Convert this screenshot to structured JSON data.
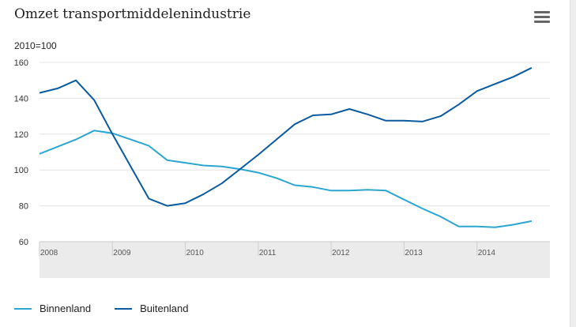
{
  "title": "Omzet transportmiddelenindustrie",
  "menu_icon": "hamburger-menu-icon",
  "chart_data": {
    "type": "line",
    "ylabel": "2010=100",
    "ylim": [
      60,
      160
    ],
    "yticks": [
      60,
      80,
      100,
      120,
      140,
      160
    ],
    "x_tick_labels": [
      "2008",
      "2009",
      "2010",
      "2011",
      "2012",
      "2013",
      "2014"
    ],
    "grid": true,
    "legend_position": "bottom-left",
    "colors": {
      "Binnenland": "#2aa6d0",
      "Buitenland": "#0a5aa0"
    },
    "series": [
      {
        "name": "Binnenland",
        "values": [
          {
            "x": 2008.0,
            "y": 109
          },
          {
            "x": 2008.25,
            "y": 113
          },
          {
            "x": 2008.5,
            "y": 117
          },
          {
            "x": 2008.75,
            "y": 122
          },
          {
            "x": 2009.0,
            "y": 120.5
          },
          {
            "x": 2009.25,
            "y": 117
          },
          {
            "x": 2009.5,
            "y": 113.5
          },
          {
            "x": 2009.75,
            "y": 105.5
          },
          {
            "x": 2010.0,
            "y": 104
          },
          {
            "x": 2010.25,
            "y": 102.5
          },
          {
            "x": 2010.5,
            "y": 102
          },
          {
            "x": 2010.75,
            "y": 100.5
          },
          {
            "x": 2011.0,
            "y": 98.5
          },
          {
            "x": 2011.25,
            "y": 95.5
          },
          {
            "x": 2011.5,
            "y": 91.5
          },
          {
            "x": 2011.75,
            "y": 90.5
          },
          {
            "x": 2012.0,
            "y": 88.5
          },
          {
            "x": 2012.25,
            "y": 88.5
          },
          {
            "x": 2012.5,
            "y": 89
          },
          {
            "x": 2012.75,
            "y": 88.5
          },
          {
            "x": 2013.0,
            "y": 83.5
          },
          {
            "x": 2013.25,
            "y": 78.5
          },
          {
            "x": 2013.5,
            "y": 74
          },
          {
            "x": 2013.75,
            "y": 68.5
          },
          {
            "x": 2014.0,
            "y": 68.5
          },
          {
            "x": 2014.25,
            "y": 68
          },
          {
            "x": 2014.5,
            "y": 69.5
          },
          {
            "x": 2014.75,
            "y": 71.5
          }
        ]
      },
      {
        "name": "Buitenland",
        "values": [
          {
            "x": 2008.0,
            "y": 143
          },
          {
            "x": 2008.25,
            "y": 145.5
          },
          {
            "x": 2008.5,
            "y": 150
          },
          {
            "x": 2008.75,
            "y": 139
          },
          {
            "x": 2009.0,
            "y": 120
          },
          {
            "x": 2009.25,
            "y": 102
          },
          {
            "x": 2009.5,
            "y": 84
          },
          {
            "x": 2009.75,
            "y": 80
          },
          {
            "x": 2010.0,
            "y": 81.5
          },
          {
            "x": 2010.25,
            "y": 86.5
          },
          {
            "x": 2010.5,
            "y": 92.5
          },
          {
            "x": 2010.75,
            "y": 100.5
          },
          {
            "x": 2011.0,
            "y": 108.5
          },
          {
            "x": 2011.25,
            "y": 117
          },
          {
            "x": 2011.5,
            "y": 125.5
          },
          {
            "x": 2011.75,
            "y": 130.5
          },
          {
            "x": 2012.0,
            "y": 131
          },
          {
            "x": 2012.25,
            "y": 134
          },
          {
            "x": 2012.5,
            "y": 131
          },
          {
            "x": 2012.75,
            "y": 127.5
          },
          {
            "x": 2013.0,
            "y": 127.5
          },
          {
            "x": 2013.25,
            "y": 127
          },
          {
            "x": 2013.5,
            "y": 130
          },
          {
            "x": 2013.75,
            "y": 136.5
          },
          {
            "x": 2014.0,
            "y": 144
          },
          {
            "x": 2014.25,
            "y": 148
          },
          {
            "x": 2014.5,
            "y": 152
          },
          {
            "x": 2014.75,
            "y": 157
          }
        ]
      }
    ]
  },
  "legend": {
    "items": [
      {
        "label": "Binnenland",
        "color": "#2aa6d0"
      },
      {
        "label": "Buitenland",
        "color": "#0a5aa0"
      }
    ]
  }
}
